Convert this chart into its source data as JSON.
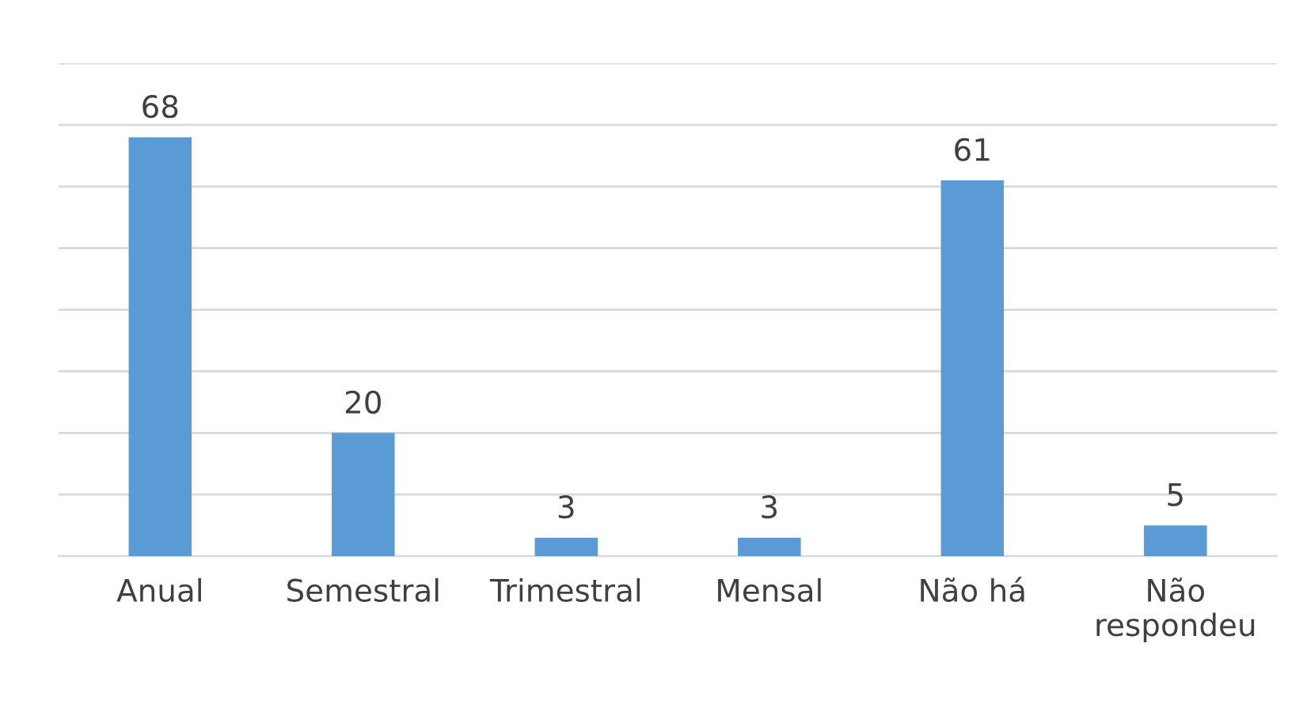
{
  "chart_data": {
    "type": "bar",
    "categories": [
      "Anual",
      "Semestral",
      "Trimestral",
      "Mensal",
      "Não há",
      "Não\nrespondeu"
    ],
    "values": [
      68,
      20,
      3,
      3,
      61,
      5
    ],
    "color": "#5b9bd5",
    "ylim": [
      0,
      80
    ],
    "yticks": [
      {
        "value": 0,
        "label": null
      },
      {
        "value": 10,
        "label": null
      },
      {
        "value": 20,
        "label": null
      },
      {
        "value": 30,
        "label": null
      },
      {
        "value": 40,
        "label": null
      },
      {
        "value": 50,
        "label": null
      },
      {
        "value": 60,
        "label": null
      },
      {
        "value": 70,
        "label": null
      },
      {
        "value": 80,
        "label": null
      }
    ],
    "grid": "y",
    "tick_labels": "x",
    "data_labels": true
  }
}
